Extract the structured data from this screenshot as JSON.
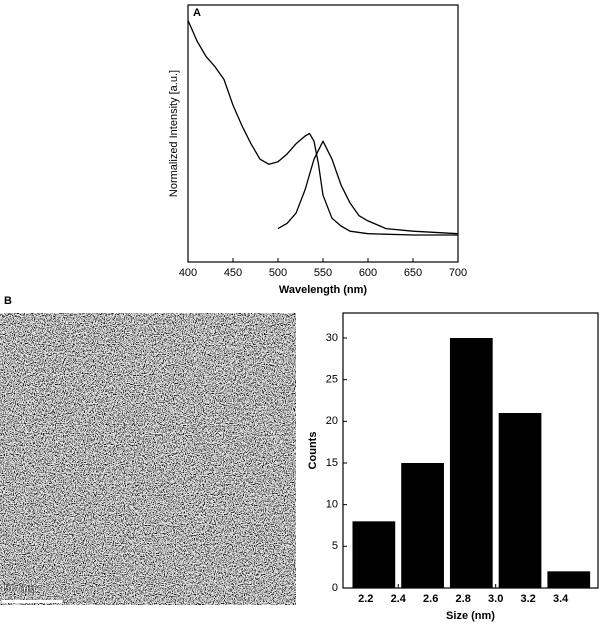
{
  "panel_labels": [
    "A",
    "B"
  ],
  "scale_bar": "50 nm",
  "chart_data": [
    {
      "type": "line",
      "xlabel": "Wavelength (nm)",
      "ylabel": "Normalized Intensity [a.u.]",
      "xlim": [
        400,
        700
      ],
      "xticks": [
        400,
        450,
        500,
        550,
        600,
        650,
        700
      ],
      "ylim": [
        0,
        1
      ],
      "series": [
        {
          "color": "#000000",
          "x": [
            400,
            410,
            420,
            430,
            440,
            450,
            460,
            470,
            480,
            490,
            500,
            510,
            520,
            530,
            535,
            540,
            545,
            550,
            560,
            570,
            580,
            600,
            650,
            700
          ],
          "values": [
            0.94,
            0.86,
            0.8,
            0.76,
            0.71,
            0.61,
            0.53,
            0.46,
            0.4,
            0.38,
            0.39,
            0.42,
            0.46,
            0.49,
            0.5,
            0.47,
            0.38,
            0.26,
            0.17,
            0.14,
            0.12,
            0.11,
            0.105,
            0.105
          ]
        },
        {
          "color": "#000000",
          "x": [
            500,
            510,
            520,
            530,
            540,
            550,
            560,
            570,
            580,
            590,
            600,
            620,
            650,
            700
          ],
          "values": [
            0.13,
            0.15,
            0.19,
            0.28,
            0.4,
            0.47,
            0.4,
            0.3,
            0.23,
            0.18,
            0.16,
            0.13,
            0.12,
            0.11
          ]
        }
      ]
    },
    {
      "type": "histogram",
      "xlabel": "Size (nm)",
      "ylabel": "Counts",
      "color": "#000000",
      "bins": [
        2.1,
        2.4,
        2.7,
        3.0,
        3.3,
        3.6
      ],
      "values": [
        8,
        15,
        30,
        21,
        2
      ],
      "xlim": [
        2.06,
        3.63
      ],
      "xticks": [
        2.2,
        2.4,
        2.6,
        2.8,
        {
          "value": 3.0,
          "label": "3.0"
        },
        3.2,
        3.4
      ],
      "ylim": [
        0,
        33
      ],
      "yticks": [
        0,
        5,
        10,
        15,
        20,
        25,
        30
      ]
    }
  ]
}
